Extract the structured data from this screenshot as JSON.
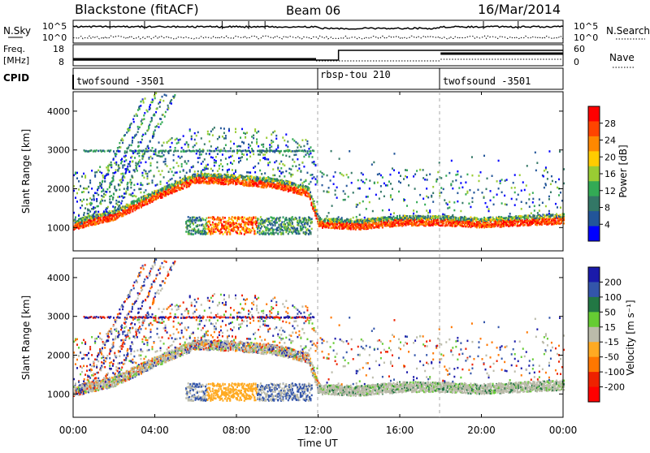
{
  "header": {
    "station": "Blackstone (fitACF)",
    "beam": "Beam 06",
    "date": "16/Mar/2014"
  },
  "noise_panel": {
    "left_label": "N.Sky",
    "right_label": "N.Search",
    "ticks_top": "10^5",
    "ticks_bottom": "10^0"
  },
  "freq_panel": {
    "left_label_top": "Freq.",
    "left_label_unit": "[MHz]",
    "left_ticks": [
      "18",
      "8"
    ],
    "right_ticks": [
      "60",
      "0"
    ],
    "right_label": "Nave"
  },
  "cpid_panel": {
    "label": "CPID",
    "segments": [
      {
        "name": "twofsound -3501",
        "start_hour": 0,
        "end_hour": 11.9
      },
      {
        "name": "rbsp-tou 210",
        "start_hour": 11.9,
        "end_hour": 18
      },
      {
        "name": "twofsound -3501",
        "start_hour": 18,
        "end_hour": 24
      }
    ]
  },
  "x_axis": {
    "label": "Time UT",
    "ticks": [
      "00:00",
      "04:00",
      "08:00",
      "12:00",
      "16:00",
      "20:00",
      "00:00"
    ],
    "range_hours": [
      0,
      24
    ]
  },
  "y_axis": {
    "label": "Slant Range [km]",
    "ticks": [
      1000,
      2000,
      3000,
      4000
    ],
    "range_km": [
      400,
      4500
    ]
  },
  "power_colorbar": {
    "label": "Power [dB]",
    "ticks": [
      "28",
      "24",
      "20",
      "16",
      "12",
      "8",
      "4"
    ],
    "colors": [
      "#ff0000",
      "#ff4400",
      "#ff8800",
      "#ffcc00",
      "#99cc33",
      "#33aa55",
      "#337766",
      "#225599",
      "#0000ff"
    ]
  },
  "velocity_colorbar": {
    "label": "Velocity [m s⁻¹]",
    "ticks": [
      "200",
      "100",
      "50",
      "15",
      "-15",
      "-50",
      "-100",
      "-200"
    ],
    "colors": [
      "#1a1aaa",
      "#3355aa",
      "#227744",
      "#66cc33",
      "#bbbbaa",
      "#ffaa22",
      "#ff7700",
      "#ee2200",
      "#ff0000"
    ]
  },
  "chart_data": {
    "type": "heatmap",
    "panels": [
      "power",
      "velocity"
    ],
    "x": "time_hours",
    "y": "slant_range_km",
    "features": [
      {
        "name": "main ionospheric band",
        "points": [
          [
            0,
            1050
          ],
          [
            2,
            1300
          ],
          [
            4,
            1800
          ],
          [
            6,
            2250
          ],
          [
            8,
            2200
          ],
          [
            10,
            2100
          ],
          [
            11.5,
            1900
          ],
          [
            12,
            1100
          ],
          [
            14,
            1050
          ],
          [
            16,
            1150
          ],
          [
            18,
            1150
          ],
          [
            20,
            1100
          ],
          [
            22,
            1150
          ],
          [
            24,
            1200
          ]
        ]
      },
      {
        "name": "ground scatter band",
        "start_hour": 5.5,
        "end_hour": 11.7,
        "range_km": [
          850,
          1300
        ]
      },
      {
        "name": "constant range line",
        "start_hour": 0.5,
        "end_hour": 11.8,
        "range_km": 3000
      },
      {
        "name": "diagonal streaks",
        "start_hour": 0,
        "end_hour": 5,
        "range_km": [
          1000,
          4500
        ]
      }
    ]
  }
}
